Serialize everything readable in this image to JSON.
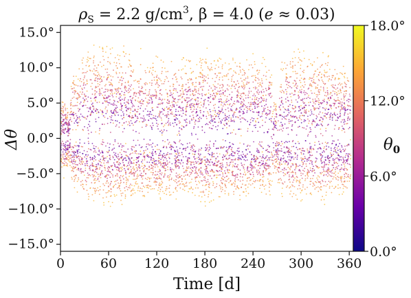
{
  "chart_data": {
    "type": "scatter",
    "title_parts": {
      "rho_symbol": "ρ",
      "rho_subscript": "S",
      "rho_value": " = 2.2 g/cm",
      "rho_exponent": "3",
      "beta_text": ", β = 4.0 (",
      "e_symbol": "e",
      "e_text": " ≈ 0.03)"
    },
    "xlabel": "Time [d]",
    "ylabel": "Δθ",
    "xlim": [
      0,
      365
    ],
    "ylim": [
      -16,
      16
    ],
    "xticks": [
      0,
      60,
      120,
      180,
      240,
      300,
      360
    ],
    "xtick_labels": [
      "0",
      "60",
      "120",
      "180",
      "240",
      "300",
      "360"
    ],
    "yticks": [
      15,
      10,
      5,
      0,
      -5,
      -10,
      -15
    ],
    "ytick_labels": [
      "15.0°",
      "10.0°",
      "5.0°",
      "0.0°",
      "−5.0°",
      "−10.0°",
      "−15.0°"
    ],
    "colorbar": {
      "label": "θ",
      "label_subscript": "0",
      "range": [
        0,
        18
      ],
      "ticks": [
        18,
        12,
        6,
        0
      ],
      "tick_labels": [
        "18.0°",
        "12.0°",
        "6.0°",
        "0.0°"
      ],
      "colormap": "plasma",
      "colors": [
        "#0d0887",
        "#6a00a8",
        "#b12a90",
        "#e16462",
        "#fca636",
        "#f0f921"
      ]
    },
    "series": [
      {
        "kind": "dense scatter band",
        "upper_envelope_x": [
          0,
          5,
          10,
          15,
          20,
          25,
          30,
          40,
          50,
          60,
          70,
          80,
          90,
          95,
          100,
          110,
          120,
          130,
          140,
          150,
          160,
          170,
          180,
          190,
          200,
          210,
          220,
          230,
          240,
          250,
          260,
          268,
          275,
          285,
          295,
          305,
          315,
          325,
          335,
          345,
          355,
          362
        ],
        "upper_envelope_y": [
          5,
          7,
          4,
          11,
          9,
          12,
          13,
          13.5,
          14.5,
          14,
          13,
          14.5,
          12,
          8.5,
          13,
          12,
          12.5,
          11.5,
          12.5,
          12,
          13,
          11.5,
          13.5,
          12,
          12.5,
          11,
          13,
          12,
          13,
          11.5,
          12.5,
          5,
          12.5,
          13,
          13.5,
          12.5,
          12,
          13,
          12.5,
          11,
          11,
          11.5
        ],
        "lower_envelope_y": [
          -4,
          -6,
          -4,
          -7,
          -8,
          -8.5,
          -9,
          -9.5,
          -9.5,
          -10,
          -9.5,
          -10,
          -9.5,
          -7,
          -9.5,
          -9,
          -9.5,
          -8.5,
          -9.5,
          -8.5,
          -9,
          -8.5,
          -10,
          -9,
          -9.5,
          -8.5,
          -9.5,
          -8.5,
          -9.5,
          -8.5,
          -9,
          -5,
          -9,
          -9.5,
          -9.5,
          -9,
          -9,
          -9.5,
          -9.5,
          -8.5,
          -8.5,
          -8
        ]
      }
    ],
    "grid": false,
    "legend": "none"
  }
}
